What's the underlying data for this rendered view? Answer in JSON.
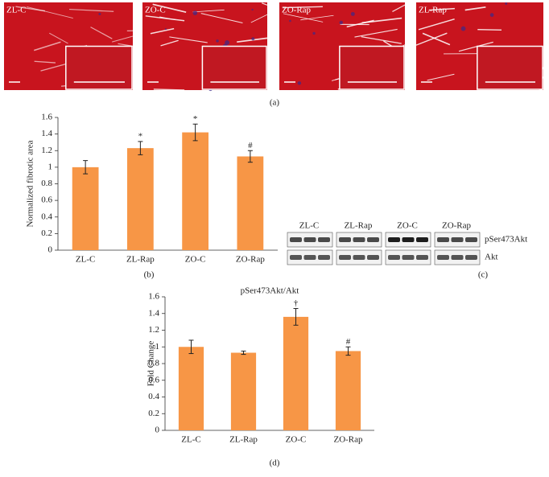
{
  "images": [
    {
      "label": "ZL-C"
    },
    {
      "label": "ZO-C"
    },
    {
      "label": "ZO-Rap"
    },
    {
      "label": "ZL-Rap"
    }
  ],
  "panel_labels": [
    "(a)",
    "(b)",
    "(c)",
    "(d)"
  ],
  "blot": {
    "groups": [
      "ZL-C",
      "ZL-Rap",
      "ZO-C",
      "ZO-Rap"
    ],
    "rows": [
      "pSer473Akt",
      "Akt"
    ]
  },
  "chart_data": [
    {
      "type": "bar",
      "y_label": "Normalized fibrotic area",
      "categories": [
        "ZL-C",
        "ZL-Rap",
        "ZO-C",
        "ZO-Rap"
      ],
      "values": [
        1.0,
        1.23,
        1.42,
        1.13
      ],
      "errors": [
        0.08,
        0.08,
        0.1,
        0.07
      ],
      "annotations": [
        null,
        "*",
        "*",
        "#"
      ],
      "color": "#f79646",
      "ylim": [
        0,
        1.6
      ],
      "yticks": [
        0,
        0.2,
        0.4,
        0.6,
        0.8,
        1,
        1.2,
        1.4,
        1.6
      ]
    },
    {
      "type": "bar",
      "title": "pSer473Akt/Akt",
      "y_label": "Fold Change",
      "categories": [
        "ZL-C",
        "ZL-Rap",
        "ZO-C",
        "ZO-Rap"
      ],
      "values": [
        1.0,
        0.93,
        1.36,
        0.95
      ],
      "errors": [
        0.08,
        0.02,
        0.1,
        0.05
      ],
      "annotations": [
        null,
        null,
        "†",
        "#"
      ],
      "color": "#f79646",
      "ylim": [
        0,
        1.6
      ],
      "yticks": [
        0,
        0.2,
        0.4,
        0.6,
        0.8,
        1,
        1.2,
        1.4,
        1.6
      ]
    }
  ]
}
